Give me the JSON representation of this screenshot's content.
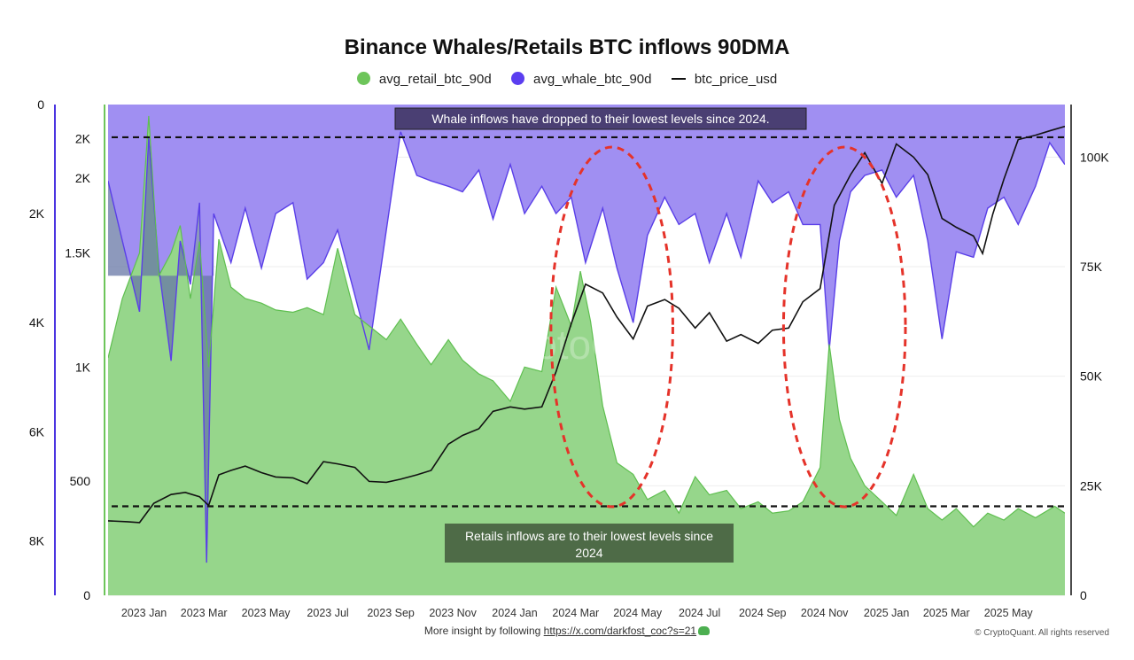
{
  "title": "Binance Whales/Retails BTC inflows 90DMA",
  "legend": [
    {
      "label": "avg_retail_btc_90d",
      "color": "#6dc55a",
      "kind": "dot"
    },
    {
      "label": "avg_whale_btc_90d",
      "color": "#5b3ef0",
      "kind": "dot"
    },
    {
      "label": "btc_price_usd",
      "color": "#111111",
      "kind": "line"
    }
  ],
  "colors": {
    "retail_fill": "#96d68b",
    "retail_stroke": "#5fbf50",
    "whale_fill": "#a08ff2",
    "whale_stroke": "#5a3fe8",
    "overlap_fill": "#6777a6",
    "price": "#111111",
    "ellipse": "#e5332a",
    "annotation_top_bg": "#4a3f73",
    "annotation_bottom_bg": "#4e6b47"
  },
  "chart_data": {
    "type": "area",
    "title": "Binance Whales/Retails BTC inflows 90DMA",
    "x_tick_labels": [
      "2023 Jan",
      "2023 Mar",
      "2023 May",
      "2023 Jul",
      "2023 Sep",
      "2023 Nov",
      "2024 Jan",
      "2024 Mar",
      "2024 May",
      "2024 Jul",
      "2024 Sep",
      "2024 Nov",
      "2025 Jan",
      "2025 Mar",
      "2025 May"
    ],
    "x_range": [
      "2022-12-01",
      "2025-06-30"
    ],
    "axes": {
      "whale_left_inverted": {
        "ticks": [
          "0",
          "2K",
          "4K",
          "6K",
          "8K"
        ],
        "range": [
          0,
          9000
        ],
        "inverted": true,
        "series": "avg_whale_btc_90d"
      },
      "retail_left": {
        "ticks": [
          "0",
          "500",
          "1K",
          "1.5K",
          "2K",
          "2K"
        ],
        "range": [
          0,
          2150
        ],
        "series": "avg_retail_btc_90d"
      },
      "price_right": {
        "ticks": [
          "0",
          "25K",
          "50K",
          "75K",
          "100K"
        ],
        "range": [
          0,
          112000
        ],
        "series": "btc_price_usd"
      }
    },
    "series": [
      {
        "name": "avg_retail_btc_90d",
        "axis": "retail_left",
        "x": [
          "2022-12-01",
          "2022-12-15",
          "2023-01-01",
          "2023-01-10",
          "2023-01-20",
          "2023-02-01",
          "2023-02-10",
          "2023-02-20",
          "2023-03-01",
          "2023-03-10",
          "2023-03-20",
          "2023-04-01",
          "2023-04-15",
          "2023-05-01",
          "2023-05-15",
          "2023-06-01",
          "2023-06-15",
          "2023-07-01",
          "2023-07-15",
          "2023-08-01",
          "2023-08-15",
          "2023-09-01",
          "2023-09-15",
          "2023-10-01",
          "2023-10-15",
          "2023-11-01",
          "2023-11-15",
          "2023-12-01",
          "2023-12-15",
          "2024-01-01",
          "2024-01-15",
          "2024-02-01",
          "2024-02-15",
          "2024-03-01",
          "2024-03-10",
          "2024-03-20",
          "2024-04-01",
          "2024-04-15",
          "2024-05-01",
          "2024-05-15",
          "2024-06-01",
          "2024-06-15",
          "2024-07-01",
          "2024-07-15",
          "2024-08-01",
          "2024-08-15",
          "2024-09-01",
          "2024-09-15",
          "2024-10-01",
          "2024-10-15",
          "2024-11-01",
          "2024-11-10",
          "2024-11-20",
          "2024-12-01",
          "2024-12-15",
          "2025-01-01",
          "2025-01-15",
          "2025-02-01",
          "2025-02-15",
          "2025-03-01",
          "2025-03-15",
          "2025-04-01",
          "2025-04-15",
          "2025-05-01",
          "2025-05-15",
          "2025-06-01",
          "2025-06-20",
          "2025-06-30"
        ],
        "values": [
          1040,
          1300,
          1500,
          2100,
          1400,
          1500,
          1620,
          1300,
          1550,
          1000,
          1560,
          1350,
          1300,
          1280,
          1250,
          1240,
          1260,
          1230,
          1520,
          1230,
          1180,
          1120,
          1210,
          1100,
          1010,
          1120,
          1030,
          970,
          940,
          850,
          1000,
          980,
          1350,
          1180,
          1420,
          1200,
          830,
          580,
          530,
          420,
          460,
          360,
          520,
          440,
          460,
          380,
          410,
          360,
          370,
          410,
          560,
          1100,
          770,
          600,
          480,
          410,
          350,
          530,
          380,
          330,
          380,
          300,
          360,
          330,
          380,
          340,
          390,
          360
        ]
      },
      {
        "name": "avg_whale_btc_90d",
        "axis": "whale_left_inverted",
        "x": [
          "2022-12-01",
          "2022-12-15",
          "2023-01-01",
          "2023-01-10",
          "2023-01-20",
          "2023-02-01",
          "2023-02-10",
          "2023-02-20",
          "2023-03-01",
          "2023-03-08",
          "2023-03-15",
          "2023-04-01",
          "2023-04-15",
          "2023-05-01",
          "2023-05-15",
          "2023-06-01",
          "2023-06-15",
          "2023-07-01",
          "2023-07-15",
          "2023-08-01",
          "2023-08-15",
          "2023-09-01",
          "2023-09-15",
          "2023-10-01",
          "2023-10-15",
          "2023-11-01",
          "2023-11-15",
          "2023-12-01",
          "2023-12-15",
          "2024-01-01",
          "2024-01-15",
          "2024-02-01",
          "2024-02-15",
          "2024-03-01",
          "2024-03-15",
          "2024-04-01",
          "2024-04-15",
          "2024-05-01",
          "2024-05-15",
          "2024-06-01",
          "2024-06-15",
          "2024-07-01",
          "2024-07-15",
          "2024-08-01",
          "2024-08-15",
          "2024-09-01",
          "2024-09-15",
          "2024-10-01",
          "2024-10-15",
          "2024-11-01",
          "2024-11-10",
          "2024-11-20",
          "2024-12-01",
          "2024-12-15",
          "2025-01-01",
          "2025-01-15",
          "2025-02-01",
          "2025-02-15",
          "2025-03-01",
          "2025-03-15",
          "2025-04-01",
          "2025-04-15",
          "2025-05-01",
          "2025-05-15",
          "2025-06-01",
          "2025-06-15",
          "2025-06-30"
        ],
        "values": [
          1400,
          2500,
          3800,
          600,
          3000,
          4700,
          2500,
          3300,
          1800,
          8400,
          2000,
          2900,
          1900,
          3000,
          2000,
          1800,
          3200,
          2900,
          2300,
          3500,
          4500,
          2300,
          500,
          1300,
          1400,
          1500,
          1600,
          1200,
          2100,
          1100,
          2000,
          1500,
          2000,
          1700,
          2900,
          1900,
          3000,
          4000,
          2400,
          1700,
          2200,
          2000,
          2900,
          2000,
          2800,
          1400,
          1800,
          1600,
          2200,
          2200,
          4500,
          2500,
          1600,
          1300,
          1200,
          1700,
          1300,
          2500,
          4300,
          2700,
          2800,
          1900,
          1700,
          2200,
          1500,
          700,
          1100
        ]
      },
      {
        "name": "btc_price_usd",
        "axis": "price_right",
        "x": [
          "2022-12-01",
          "2022-12-20",
          "2023-01-01",
          "2023-01-15",
          "2023-02-01",
          "2023-02-15",
          "2023-03-01",
          "2023-03-10",
          "2023-03-20",
          "2023-04-01",
          "2023-04-15",
          "2023-05-01",
          "2023-05-15",
          "2023-06-01",
          "2023-06-15",
          "2023-07-01",
          "2023-07-15",
          "2023-08-01",
          "2023-08-15",
          "2023-09-01",
          "2023-09-15",
          "2023-10-01",
          "2023-10-15",
          "2023-11-01",
          "2023-11-15",
          "2023-12-01",
          "2023-12-15",
          "2024-01-01",
          "2024-01-15",
          "2024-02-01",
          "2024-02-15",
          "2024-03-01",
          "2024-03-15",
          "2024-04-01",
          "2024-04-15",
          "2024-05-01",
          "2024-05-15",
          "2024-06-01",
          "2024-06-15",
          "2024-07-01",
          "2024-07-15",
          "2024-08-01",
          "2024-08-15",
          "2024-09-01",
          "2024-09-15",
          "2024-10-01",
          "2024-10-15",
          "2024-11-01",
          "2024-11-15",
          "2024-12-01",
          "2024-12-15",
          "2025-01-01",
          "2025-01-15",
          "2025-02-01",
          "2025-02-15",
          "2025-03-01",
          "2025-03-15",
          "2025-04-01",
          "2025-04-10",
          "2025-04-20",
          "2025-05-01",
          "2025-05-15",
          "2025-06-01",
          "2025-06-15",
          "2025-06-30"
        ],
        "values": [
          17000,
          16800,
          16600,
          21000,
          23000,
          23500,
          22500,
          20500,
          27500,
          28500,
          29500,
          28000,
          27000,
          26800,
          25500,
          30500,
          30000,
          29200,
          26000,
          25800,
          26500,
          27500,
          28500,
          34500,
          36500,
          38000,
          42000,
          43000,
          42500,
          43000,
          51000,
          62000,
          71000,
          69000,
          63500,
          58500,
          66000,
          67500,
          65500,
          61000,
          64500,
          58000,
          59500,
          57500,
          60500,
          61000,
          67000,
          70000,
          89000,
          96000,
          101000,
          94000,
          103000,
          100000,
          96000,
          86000,
          84000,
          82000,
          78000,
          87000,
          95000,
          104000,
          105000,
          106000,
          107000
        ]
      }
    ],
    "reference_lines": [
      {
        "series": "avg_whale_btc_90d",
        "value": 600,
        "style": "dashed"
      },
      {
        "series": "avg_retail_btc_90d",
        "value": 390,
        "style": "dashed"
      }
    ],
    "highlight_ellipses": [
      {
        "x_center": "2024-04-10",
        "x_span_days": 120
      },
      {
        "x_center": "2024-11-25",
        "x_span_days": 120
      }
    ],
    "annotations": [
      {
        "text": "Whale inflows have dropped to their lowest levels since 2024."
      },
      {
        "text": "Retails inflows are to their lowest levels since 2024"
      }
    ],
    "watermark": "CryptoQuant",
    "grid": true
  },
  "footer": {
    "text": "More insight by following",
    "link": "https://x.com/darkfost_coc?s=21"
  },
  "copyright": "© CryptoQuant. All rights reserved"
}
